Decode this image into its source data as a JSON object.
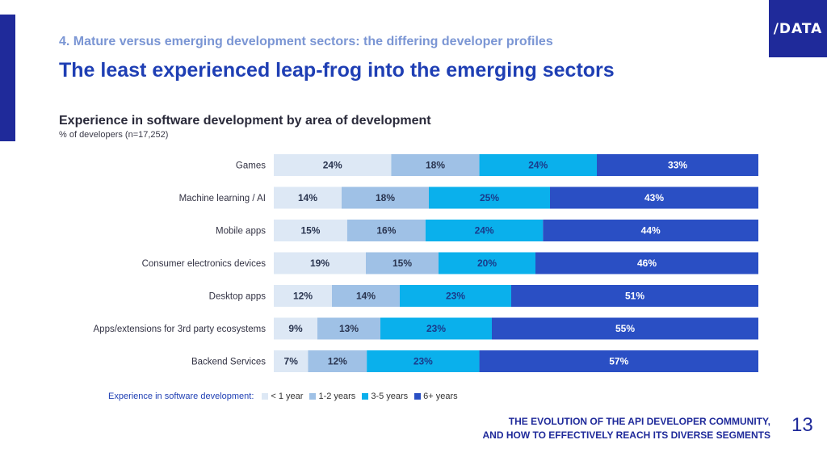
{
  "brand": {
    "logo_text": "/DATA",
    "primary_color": "#1f2a9a",
    "accent_color": "#1f3fb4"
  },
  "header": {
    "section_title": "4. Mature versus emerging development sectors: the differing developer profiles",
    "headline": "The least experienced leap-frog into the emerging sectors"
  },
  "chart_data": {
    "type": "bar",
    "orientation": "horizontal",
    "stacked": true,
    "title": "Experience in software development by area of development",
    "subtitle": "% of developers (n=17,252)",
    "categories": [
      "Games",
      "Machine learning / AI",
      "Mobile apps",
      "Consumer electronics devices",
      "Desktop apps",
      "Apps/extensions for 3rd party ecosystems",
      "Backend Services"
    ],
    "series": [
      {
        "name": "< 1 year",
        "color": "#dde8f5",
        "values": [
          24,
          14,
          15,
          19,
          12,
          9,
          7
        ]
      },
      {
        "name": "1-2 years",
        "color": "#9fc1e6",
        "values": [
          18,
          18,
          16,
          15,
          14,
          13,
          12
        ]
      },
      {
        "name": "3-5 years",
        "color": "#0ab0ec",
        "values": [
          24,
          25,
          24,
          20,
          23,
          23,
          23
        ]
      },
      {
        "name": "6+ years",
        "color": "#2a4fc4",
        "values": [
          33,
          43,
          44,
          46,
          51,
          55,
          57
        ]
      }
    ],
    "legend_title": "Experience in software development:",
    "legend_position": "bottom",
    "grid": false
  },
  "footer": {
    "line1": "THE EVOLUTION OF THE API DEVELOPER COMMUNITY,",
    "line2": "AND HOW TO EFFECTIVELY REACH ITS DIVERSE SEGMENTS",
    "page_number": "13"
  }
}
